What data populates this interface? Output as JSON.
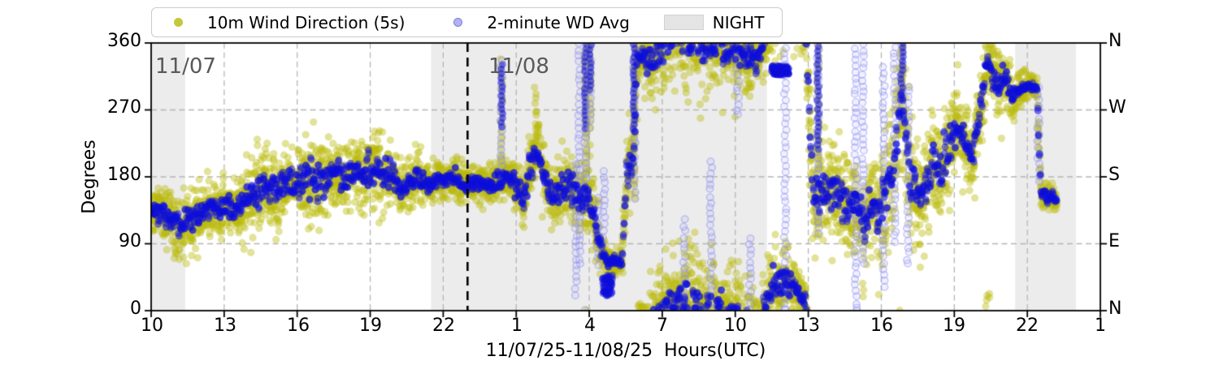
{
  "legend": {
    "items": [
      {
        "label": "10m Wind Direction (5s)",
        "marker": "dot",
        "color": "#c6c63c"
      },
      {
        "label": "2-minute WD Avg",
        "marker": "ring",
        "color": "#b2b2f5"
      },
      {
        "label": "NIGHT",
        "marker": "patch",
        "color": "#e4e4e4"
      }
    ]
  },
  "axes": {
    "y_label": "Degrees",
    "x_label": "11/07/25-11/08/25  Hours(UTC)",
    "y_ticks": [
      "0",
      "90",
      "180",
      "270",
      "360"
    ],
    "y_right_ticks": [
      "N",
      "E",
      "S",
      "W",
      "N"
    ],
    "x_ticks": [
      "10",
      "13",
      "16",
      "19",
      "22",
      "1",
      "4",
      "7",
      "10",
      "13",
      "16",
      "19",
      "22",
      "1"
    ]
  },
  "annotations": {
    "date_left": "11/07",
    "date_right": "11/08"
  },
  "chart_data": {
    "type": "scatter",
    "title": "",
    "xlabel": "11/07/25-11/08/25  Hours(UTC)",
    "ylabel": "Degrees",
    "x_unit": "hours since 11/07 00:00 UTC (axis wraps past midnight)",
    "xlim": [
      10,
      49
    ],
    "ylim": [
      0,
      360
    ],
    "x_tick_hours": [
      10,
      13,
      16,
      19,
      22,
      25,
      28,
      31,
      34,
      37,
      40,
      43,
      46,
      49
    ],
    "x_tick_labels": [
      "10",
      "13",
      "16",
      "19",
      "22",
      "1",
      "4",
      "7",
      "10",
      "13",
      "16",
      "19",
      "22",
      "1"
    ],
    "y_ticks": [
      0,
      90,
      180,
      270,
      360
    ],
    "compass_labels": [
      "N",
      "E",
      "S",
      "W",
      "N"
    ],
    "grid": true,
    "legend_position": "top",
    "night_bands": [
      [
        10,
        11.4
      ],
      [
        21.5,
        35.3
      ],
      [
        45.5,
        48
      ]
    ],
    "date_line_hour": 23,
    "data_end_hour": 47.2,
    "series": [
      {
        "name": "10m Wind Direction (5s)",
        "color": "rgba(186,186,12,0.42)",
        "marker_radius": 4.6,
        "sample_seconds": 30,
        "spread_scale": 1.0
      },
      {
        "name": "2-minute WD Avg",
        "color": "rgba(13,13,220,0.50)",
        "marker_radius": 4.4,
        "sample_seconds": 120,
        "spread_scale": 0.42
      }
    ],
    "backbone_h_deg_spread": [
      [
        10.0,
        138,
        18
      ],
      [
        10.4,
        132,
        18
      ],
      [
        10.8,
        122,
        20
      ],
      [
        11.2,
        113,
        20
      ],
      [
        11.6,
        118,
        20
      ],
      [
        12.0,
        130,
        20
      ],
      [
        12.4,
        138,
        18
      ],
      [
        12.8,
        134,
        18
      ],
      [
        13.2,
        142,
        18
      ],
      [
        13.6,
        138,
        20
      ],
      [
        14.0,
        152,
        24
      ],
      [
        14.4,
        161,
        26
      ],
      [
        14.8,
        168,
        24
      ],
      [
        15.2,
        163,
        24
      ],
      [
        15.6,
        172,
        24
      ],
      [
        16.0,
        170,
        24
      ],
      [
        16.4,
        178,
        26
      ],
      [
        16.8,
        173,
        26
      ],
      [
        17.2,
        180,
        24
      ],
      [
        17.6,
        186,
        24
      ],
      [
        18.0,
        180,
        24
      ],
      [
        18.4,
        188,
        24
      ],
      [
        18.8,
        183,
        24
      ],
      [
        19.2,
        190,
        24
      ],
      [
        19.6,
        184,
        22
      ],
      [
        20.0,
        176,
        20
      ],
      [
        20.3,
        160,
        18
      ],
      [
        20.6,
        170,
        16
      ],
      [
        21.0,
        177,
        15
      ],
      [
        21.4,
        170,
        14
      ],
      [
        21.8,
        174,
        13
      ],
      [
        22.2,
        178,
        12
      ],
      [
        22.6,
        174,
        12
      ],
      [
        23.0,
        170,
        12
      ],
      [
        23.4,
        172,
        12
      ],
      [
        23.8,
        167,
        13
      ],
      [
        24.1,
        172,
        14
      ],
      [
        24.4,
        178,
        16
      ],
      [
        24.7,
        180,
        16
      ],
      [
        25.0,
        165,
        16
      ],
      [
        25.3,
        150,
        18
      ],
      [
        25.6,
        195,
        22
      ],
      [
        25.9,
        213,
        24
      ],
      [
        26.2,
        175,
        24
      ],
      [
        26.5,
        150,
        20
      ],
      [
        26.8,
        163,
        20
      ],
      [
        27.1,
        172,
        20
      ],
      [
        27.4,
        158,
        22
      ],
      [
        27.7,
        150,
        25
      ],
      [
        27.9,
        165,
        30
      ],
      [
        28.1,
        140,
        28
      ],
      [
        28.3,
        108,
        20
      ],
      [
        28.5,
        82,
        14
      ],
      [
        28.75,
        66,
        7
      ],
      [
        29.0,
        65,
        6
      ],
      [
        29.35,
        65,
        7
      ],
      [
        29.55,
        185,
        25
      ],
      [
        29.8,
        200,
        25
      ],
      [
        30.0,
        348,
        20
      ],
      [
        30.4,
        327,
        28
      ],
      [
        30.8,
        350,
        32
      ],
      [
        31.2,
        365,
        33
      ],
      [
        31.6,
        375,
        33
      ],
      [
        32.0,
        370,
        36
      ],
      [
        32.5,
        360,
        36
      ],
      [
        33.0,
        355,
        34
      ],
      [
        33.5,
        358,
        32
      ],
      [
        34.0,
        350,
        32
      ],
      [
        34.5,
        342,
        28
      ],
      [
        35.0,
        336,
        20
      ],
      [
        35.35,
        385,
        25
      ],
      [
        36.0,
        400,
        25
      ],
      [
        36.5,
        390,
        20
      ],
      [
        36.9,
        372,
        15
      ],
      [
        37.2,
        150,
        45
      ],
      [
        37.5,
        165,
        40
      ],
      [
        37.8,
        155,
        38
      ],
      [
        38.1,
        168,
        32
      ],
      [
        38.4,
        148,
        32
      ],
      [
        38.7,
        138,
        30
      ],
      [
        39.0,
        148,
        32
      ],
      [
        39.3,
        105,
        32
      ],
      [
        39.6,
        148,
        35
      ],
      [
        39.9,
        125,
        40
      ],
      [
        40.2,
        160,
        40
      ],
      [
        40.5,
        195,
        45
      ],
      [
        40.85,
        300,
        35
      ],
      [
        41.1,
        190,
        45
      ],
      [
        41.3,
        170,
        40
      ],
      [
        41.6,
        155,
        35
      ],
      [
        41.9,
        180,
        35
      ],
      [
        42.2,
        205,
        32
      ],
      [
        42.5,
        190,
        30
      ],
      [
        42.8,
        225,
        30
      ],
      [
        43.1,
        250,
        28
      ],
      [
        43.4,
        230,
        26
      ],
      [
        43.7,
        205,
        24
      ],
      [
        44.0,
        250,
        26
      ],
      [
        44.35,
        335,
        20
      ],
      [
        44.6,
        320,
        22
      ],
      [
        44.85,
        295,
        22
      ],
      [
        45.1,
        315,
        18
      ],
      [
        45.35,
        285,
        16
      ],
      [
        45.6,
        295,
        12
      ],
      [
        45.9,
        300,
        10
      ],
      [
        46.2,
        302,
        8
      ],
      [
        46.4,
        298,
        8
      ],
      [
        46.55,
        162,
        8
      ],
      [
        46.8,
        152,
        8
      ],
      [
        47.0,
        155,
        8
      ],
      [
        47.2,
        148,
        8
      ]
    ],
    "excursions_h_lo_hi_kind": [
      [
        24.4,
        175,
        335,
        "both"
      ],
      [
        25.8,
        195,
        305,
        "wd"
      ],
      [
        27.45,
        20,
        200,
        "avg"
      ],
      [
        27.6,
        60,
        360,
        "avg"
      ],
      [
        27.85,
        150,
        360,
        "both"
      ],
      [
        28.05,
        245,
        360,
        "both"
      ],
      [
        28.35,
        60,
        155,
        "avg"
      ],
      [
        28.6,
        90,
        190,
        "avg"
      ],
      [
        29.85,
        150,
        360,
        "both"
      ],
      [
        31.9,
        0,
        120,
        "avg"
      ],
      [
        33.0,
        0,
        200,
        "avg"
      ],
      [
        34.1,
        260,
        360,
        "avg"
      ],
      [
        34.6,
        0,
        100,
        "avg"
      ],
      [
        36.05,
        0,
        360,
        "avg"
      ],
      [
        37.4,
        100,
        360,
        "both"
      ],
      [
        38.95,
        0,
        360,
        "avg"
      ],
      [
        39.25,
        60,
        360,
        "avg"
      ],
      [
        40.1,
        30,
        330,
        "avg"
      ],
      [
        40.55,
        90,
        360,
        "avg"
      ],
      [
        40.85,
        250,
        360,
        "both"
      ],
      [
        41.1,
        60,
        300,
        "avg"
      ],
      [
        46.45,
        170,
        300,
        "avg"
      ]
    ],
    "avg_blobs_h0_h1_lo_hi": [
      [
        28.55,
        28.95,
        20,
        48
      ],
      [
        35.5,
        36.2,
        317,
        330
      ]
    ],
    "colors": {
      "wd_dense": "#b5b50c",
      "avg_dense": "#0d0dd8",
      "avg_faded_ring": "#8c8cf0",
      "night_band": "#ececec",
      "gridline": "#b5b5b5",
      "date_line": "#000000",
      "annotation_text": "#595959"
    }
  }
}
